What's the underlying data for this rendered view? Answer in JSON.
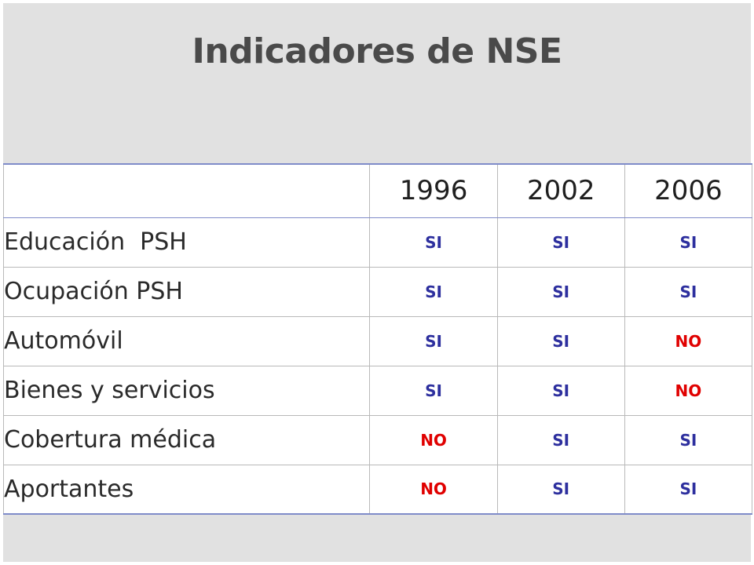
{
  "title": "Indicadores de NSE",
  "colors": {
    "si": "#2d2f9e",
    "no": "#e00000",
    "title": "#4a4a4a",
    "panel": "#e1e1e1",
    "rule": "#7f8bc9"
  },
  "table": {
    "years": [
      "1996",
      "2002",
      "2006"
    ],
    "rows": [
      {
        "label": "Educación  PSH",
        "values": [
          "SI",
          "SI",
          "SI"
        ]
      },
      {
        "label": "Ocupación PSH",
        "values": [
          "SI",
          "SI",
          "SI"
        ]
      },
      {
        "label": "Automóvil",
        "values": [
          "SI",
          "SI",
          "NO"
        ]
      },
      {
        "label": "Bienes y servicios",
        "values": [
          "SI",
          "SI",
          "NO"
        ]
      },
      {
        "label": "Cobertura médica",
        "values": [
          "NO",
          "SI",
          "SI"
        ]
      },
      {
        "label": "Aportantes",
        "values": [
          "NO",
          "SI",
          "SI"
        ]
      }
    ]
  }
}
